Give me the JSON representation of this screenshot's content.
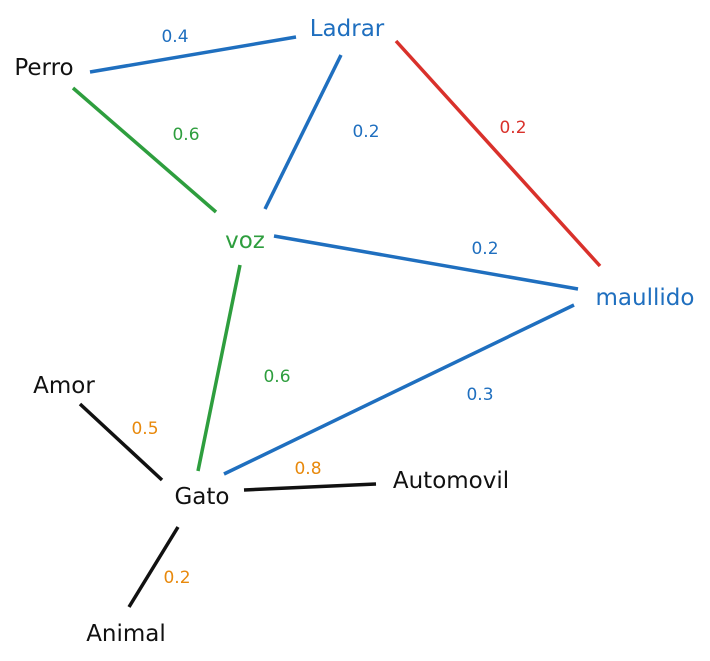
{
  "colors": {
    "blue": "#1f6fbf",
    "green": "#2e9e3e",
    "red": "#d9312b",
    "black": "#111111",
    "orange": "#e8890c"
  },
  "nodes": [
    {
      "id": "ladrar",
      "label": "Ladrar",
      "color": "#1f6fbf"
    },
    {
      "id": "perro",
      "label": "Perro",
      "color": "#111111"
    },
    {
      "id": "voz",
      "label": "voz",
      "color": "#2e9e3e"
    },
    {
      "id": "maullido",
      "label": "maullido",
      "color": "#1f6fbf"
    },
    {
      "id": "amor",
      "label": "Amor",
      "color": "#111111"
    },
    {
      "id": "gato",
      "label": "Gato",
      "color": "#111111"
    },
    {
      "id": "automovil",
      "label": "Automovil",
      "color": "#111111"
    },
    {
      "id": "animal",
      "label": "Animal",
      "color": "#111111"
    }
  ],
  "edges": [
    {
      "from": "perro",
      "to": "ladrar",
      "weight": "0.4",
      "color": "#1f6fbf",
      "weight_color": "#1f6fbf"
    },
    {
      "from": "ladrar",
      "to": "maullido",
      "weight": "0.2",
      "color": "#d9312b",
      "weight_color": "#d9312b"
    },
    {
      "from": "ladrar",
      "to": "voz",
      "weight": "0.2",
      "color": "#1f6fbf",
      "weight_color": "#1f6fbf"
    },
    {
      "from": "perro",
      "to": "voz",
      "weight": "0.6",
      "color": "#2e9e3e",
      "weight_color": "#2e9e3e"
    },
    {
      "from": "voz",
      "to": "maullido",
      "weight": "0.2",
      "color": "#1f6fbf",
      "weight_color": "#1f6fbf"
    },
    {
      "from": "voz",
      "to": "gato",
      "weight": "0.6",
      "color": "#2e9e3e",
      "weight_color": "#2e9e3e"
    },
    {
      "from": "maullido",
      "to": "gato",
      "weight": "0.3",
      "color": "#1f6fbf",
      "weight_color": "#1f6fbf"
    },
    {
      "from": "amor",
      "to": "gato",
      "weight": "0.5",
      "color": "#111111",
      "weight_color": "#e8890c"
    },
    {
      "from": "gato",
      "to": "automovil",
      "weight": "0.8",
      "color": "#111111",
      "weight_color": "#e8890c"
    },
    {
      "from": "gato",
      "to": "animal",
      "weight": "0.2",
      "color": "#111111",
      "weight_color": "#e8890c"
    }
  ]
}
